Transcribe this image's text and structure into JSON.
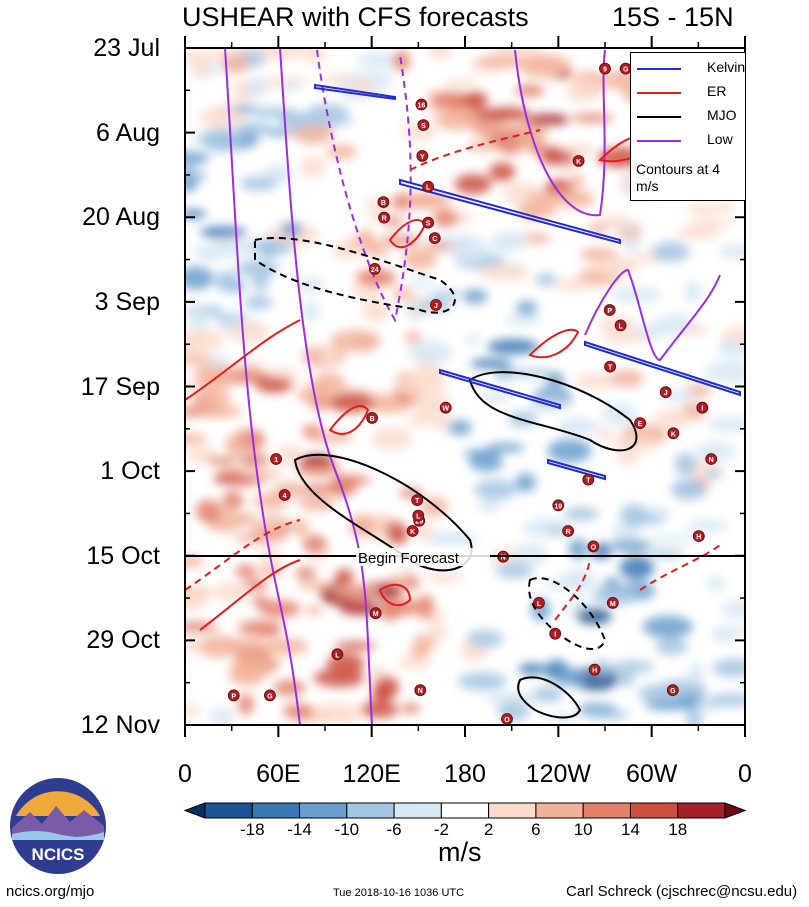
{
  "title": {
    "left": "USHEAR with CFS forecasts",
    "right": "15S - 15N"
  },
  "chart_data": {
    "type": "heatmap",
    "title": "USHEAR with CFS forecasts",
    "subtitle": "15S - 15N",
    "x_axis": {
      "label": "",
      "ticks": [
        "0",
        "60E",
        "120E",
        "180",
        "120W",
        "60W",
        "0"
      ],
      "range_deg": [
        0,
        360
      ]
    },
    "y_axis": {
      "label": "",
      "ticks": [
        "23 Jul",
        "6 Aug",
        "20 Aug",
        "3 Sep",
        "17 Sep",
        "1 Oct",
        "15 Oct",
        "29 Oct",
        "12 Nov"
      ],
      "range_days": [
        0,
        112
      ]
    },
    "colorbar": {
      "units": "m/s",
      "tick_labels": [
        "-18",
        "-14",
        "-10",
        "-6",
        "-2",
        "2",
        "6",
        "10",
        "14",
        "18"
      ],
      "colors": [
        "#0a2f5e",
        "#1d5493",
        "#3a77b4",
        "#6a9fcd",
        "#a3c6e2",
        "#d8e8f3",
        "#ffffff",
        "#fbdccc",
        "#f2b19a",
        "#e2806a",
        "#cc4f40",
        "#a3202a",
        "#6b0b1a"
      ]
    },
    "forecast_marker": {
      "label": "Begin Forecast",
      "day": 84
    },
    "legend": {
      "entries": [
        {
          "name": "Kelvin",
          "color": "#1f2bd6"
        },
        {
          "name": "ER",
          "color": "#e21b1b"
        },
        {
          "name": "MJO",
          "color": "#000000"
        },
        {
          "name": "Low",
          "color": "#9b2de0"
        }
      ],
      "note": "Contours at 4 m/s",
      "placement": "top-right"
    },
    "storms": [
      "9",
      "G",
      "H",
      "16",
      "S",
      "Y",
      "K",
      "L",
      "B",
      "R",
      "S",
      "C",
      "24",
      "J",
      "W",
      "P",
      "B",
      "1",
      "4",
      "T",
      "29",
      "L",
      "K",
      "N",
      "19",
      "R",
      "O",
      "M",
      "T",
      "L",
      "L",
      "T",
      "E",
      "J",
      "H",
      "I",
      "K",
      "N",
      "G",
      "O",
      "N",
      "M",
      "L",
      "P",
      "G",
      "I",
      "H"
    ]
  },
  "units": "m/s",
  "footer": {
    "left": "ncics.org/mjo",
    "mid": "Tue 2018-10-16 1036 UTC",
    "right": "Carl Schreck (cjschrec@ncsu.edu)"
  },
  "logo": {
    "text": "NCICS"
  }
}
